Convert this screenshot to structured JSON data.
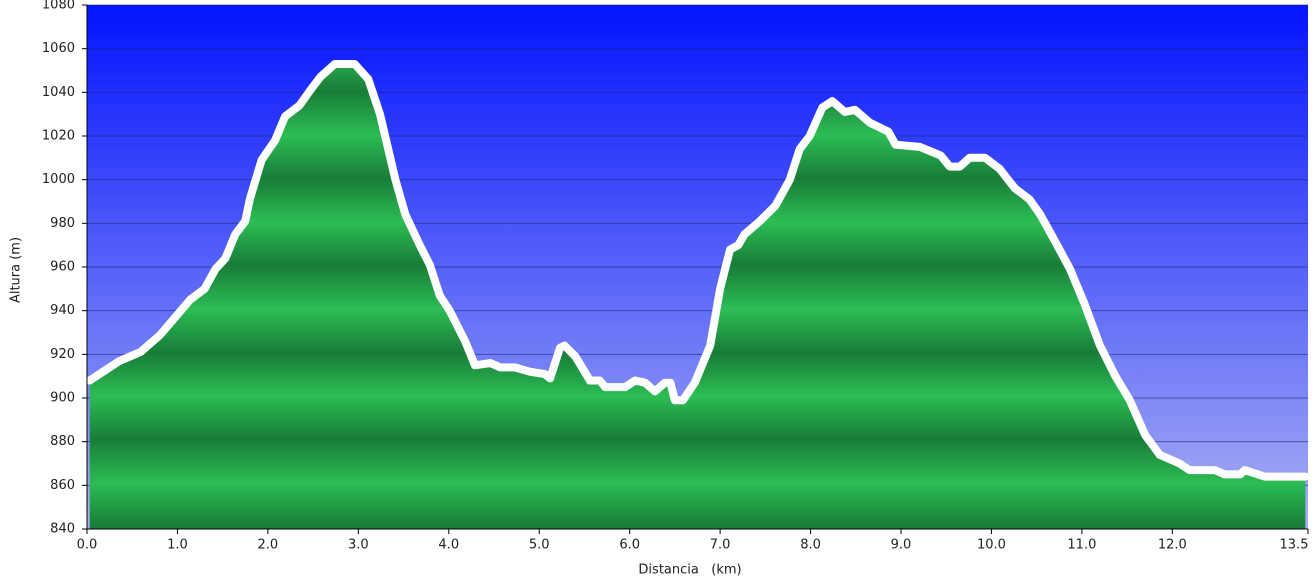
{
  "chart_data": {
    "type": "area",
    "x_label": "Distancia   (km)",
    "y_label": "Altura (m)",
    "x": [
      0.03,
      0.36,
      0.59,
      0.81,
      1.14,
      1.3,
      1.42,
      1.53,
      1.64,
      1.75,
      1.8,
      1.93,
      2.08,
      2.19,
      2.35,
      2.47,
      2.58,
      2.74,
      2.96,
      3.11,
      3.24,
      3.41,
      3.52,
      3.68,
      3.79,
      3.9,
      4.01,
      4.18,
      4.29,
      4.46,
      4.57,
      4.73,
      4.9,
      5.06,
      5.12,
      5.23,
      5.28,
      5.4,
      5.56,
      5.67,
      5.73,
      5.95,
      6.06,
      6.17,
      6.28,
      6.39,
      6.45,
      6.5,
      6.59,
      6.72,
      6.89,
      7.0,
      7.11,
      7.2,
      7.27,
      7.44,
      7.61,
      7.77,
      7.88,
      7.99,
      8.13,
      8.24,
      8.38,
      8.49,
      8.66,
      8.86,
      8.94,
      9.21,
      9.44,
      9.54,
      9.65,
      9.76,
      9.93,
      10.09,
      10.26,
      10.42,
      10.54,
      10.7,
      10.87,
      11.03,
      11.2,
      11.37,
      11.53,
      11.7,
      11.86,
      12.08,
      12.19,
      12.47,
      12.58,
      12.75,
      12.8,
      13.02,
      13.14,
      13.47
    ],
    "values": [
      908,
      917,
      921,
      929,
      945,
      950,
      959,
      964,
      975,
      981,
      991,
      1009,
      1018,
      1029,
      1034,
      1041,
      1047,
      1053,
      1053,
      1046,
      1030,
      1000,
      984,
      970,
      961,
      947,
      940,
      926,
      915,
      916,
      914,
      914,
      912,
      911,
      909,
      923,
      924,
      919,
      908,
      908,
      905,
      905,
      908,
      907,
      903,
      907,
      907,
      899,
      899,
      907,
      924,
      950,
      968,
      970,
      975,
      981,
      988,
      1000,
      1014,
      1020,
      1033,
      1036,
      1031,
      1032,
      1026,
      1022,
      1016,
      1015,
      1011,
      1006,
      1006,
      1010,
      1010,
      1005,
      996,
      991,
      984,
      972,
      959,
      943,
      924,
      910,
      899,
      883,
      874,
      870,
      867,
      867,
      865,
      865,
      867,
      864,
      864,
      864
    ],
    "color": "#1fa84a",
    "line_color": "#ffffff",
    "xlim": [
      0,
      13.5
    ],
    "ylim": [
      840,
      1080
    ],
    "xticks": [
      {
        "value": 0,
        "label": "0.0"
      },
      {
        "value": 1,
        "label": "1.0"
      },
      {
        "value": 2,
        "label": "2.0"
      },
      {
        "value": 3,
        "label": "3.0"
      },
      {
        "value": 4,
        "label": "4.0"
      },
      {
        "value": 5,
        "label": "5.0"
      },
      {
        "value": 6,
        "label": "6.0"
      },
      {
        "value": 7,
        "label": "7.0"
      },
      {
        "value": 8,
        "label": "8.0"
      },
      {
        "value": 9,
        "label": "9.0"
      },
      {
        "value": 10,
        "label": "10.0"
      },
      {
        "value": 11,
        "label": "11.0"
      },
      {
        "value": 12,
        "label": "12.0"
      },
      {
        "value": 13.5,
        "label": "13.5"
      }
    ],
    "yticks": [
      840,
      860,
      880,
      900,
      920,
      940,
      960,
      980,
      1000,
      1020,
      1040,
      1060,
      1080
    ],
    "grid": true
  }
}
